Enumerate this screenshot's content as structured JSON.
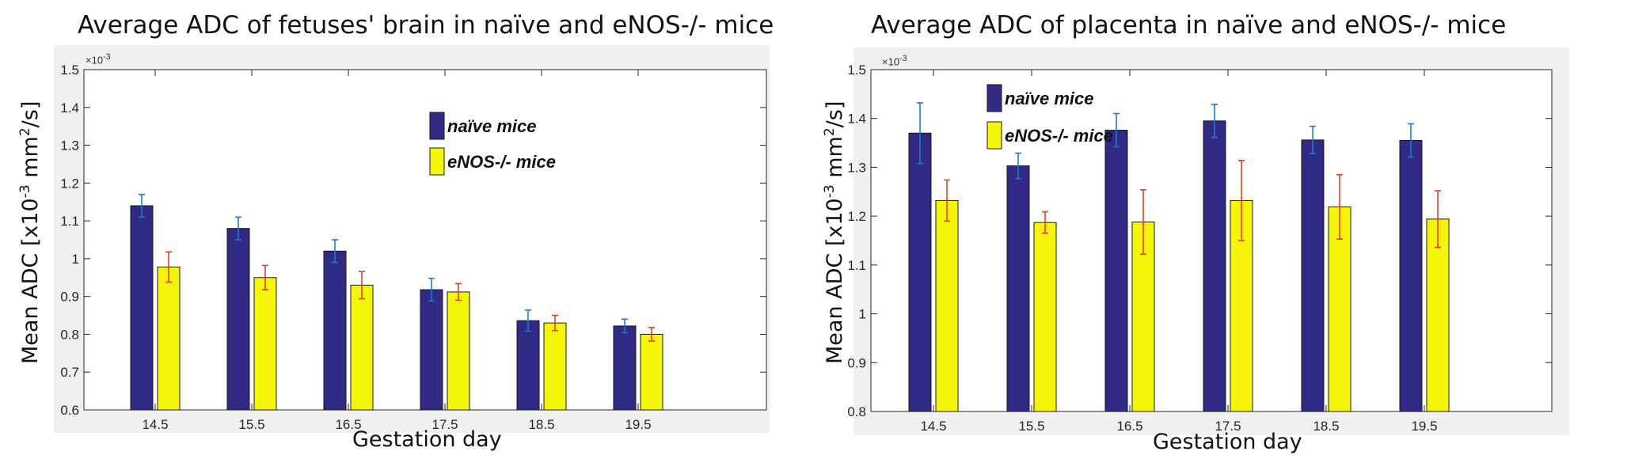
{
  "chart_data": [
    {
      "type": "bar",
      "title": "Average ADC of fetuses' brain in naïve and eNOS-/- mice",
      "xlabel": "Gestation day",
      "ylabel": "Mean ADC [x10",
      "ylabel_sup": "-3",
      "ylabel_unit": " mm",
      "ylabel_sup2": "2",
      "ylabel_end": "/s]",
      "exponent_label": "×10",
      "exponent_sup": "-3",
      "categories": [
        "14.5",
        "15.5",
        "16.5",
        "17.5",
        "18.5",
        "19.5"
      ],
      "ylim": [
        0.6,
        1.5
      ],
      "yticks": [
        0.6,
        0.7,
        0.8,
        0.9,
        1.0,
        1.1,
        1.2,
        1.3,
        1.4,
        1.5
      ],
      "ytick_labels": [
        "0.6",
        "0.7",
        "0.8",
        "0.9",
        "1",
        "1.1",
        "1.2",
        "1.3",
        "1.4",
        "1.5"
      ],
      "legend_position": "top-right",
      "grid": false,
      "series": [
        {
          "name": "naïve mice",
          "color": "#312a84",
          "error_color": "#1f77d4",
          "values": [
            1.14,
            1.08,
            1.02,
            0.918,
            0.836,
            0.822
          ],
          "errors": [
            0.03,
            0.03,
            0.03,
            0.03,
            0.028,
            0.018
          ]
        },
        {
          "name": "eNOS-/- mice",
          "color": "#f5f50a",
          "error_color": "#e0402a",
          "values": [
            0.978,
            0.95,
            0.93,
            0.912,
            0.83,
            0.8
          ],
          "errors": [
            0.04,
            0.032,
            0.036,
            0.022,
            0.02,
            0.018
          ]
        }
      ]
    },
    {
      "type": "bar",
      "title": "Average ADC of placenta in naïve and eNOS-/- mice",
      "xlabel": "Gestation day",
      "ylabel": "Mean ADC [x10",
      "ylabel_sup": "-3",
      "ylabel_unit": " mm",
      "ylabel_sup2": "2",
      "ylabel_end": "/s]",
      "exponent_label": "×10",
      "exponent_sup": "-3",
      "categories": [
        "14.5",
        "15.5",
        "16.5",
        "17.5",
        "18.5",
        "19.5"
      ],
      "ylim": [
        0.8,
        1.5
      ],
      "yticks": [
        0.8,
        0.9,
        1.0,
        1.1,
        1.2,
        1.3,
        1.4,
        1.5
      ],
      "ytick_labels": [
        "0.8",
        "0.9",
        "1",
        "1.1",
        "1.2",
        "1.3",
        "1.4",
        "1.5"
      ],
      "legend_position": "top-left",
      "grid": false,
      "series": [
        {
          "name": "naïve mice",
          "color": "#312a84",
          "error_color": "#1f77d4",
          "values": [
            1.37,
            1.303,
            1.376,
            1.395,
            1.356,
            1.355
          ],
          "errors": [
            0.062,
            0.026,
            0.034,
            0.034,
            0.028,
            0.034
          ]
        },
        {
          "name": "eNOS-/- mice",
          "color": "#f5f50a",
          "error_color": "#e0402a",
          "values": [
            1.232,
            1.187,
            1.188,
            1.232,
            1.219,
            1.194
          ],
          "errors": [
            0.042,
            0.022,
            0.066,
            0.082,
            0.066,
            0.058
          ]
        }
      ]
    }
  ]
}
